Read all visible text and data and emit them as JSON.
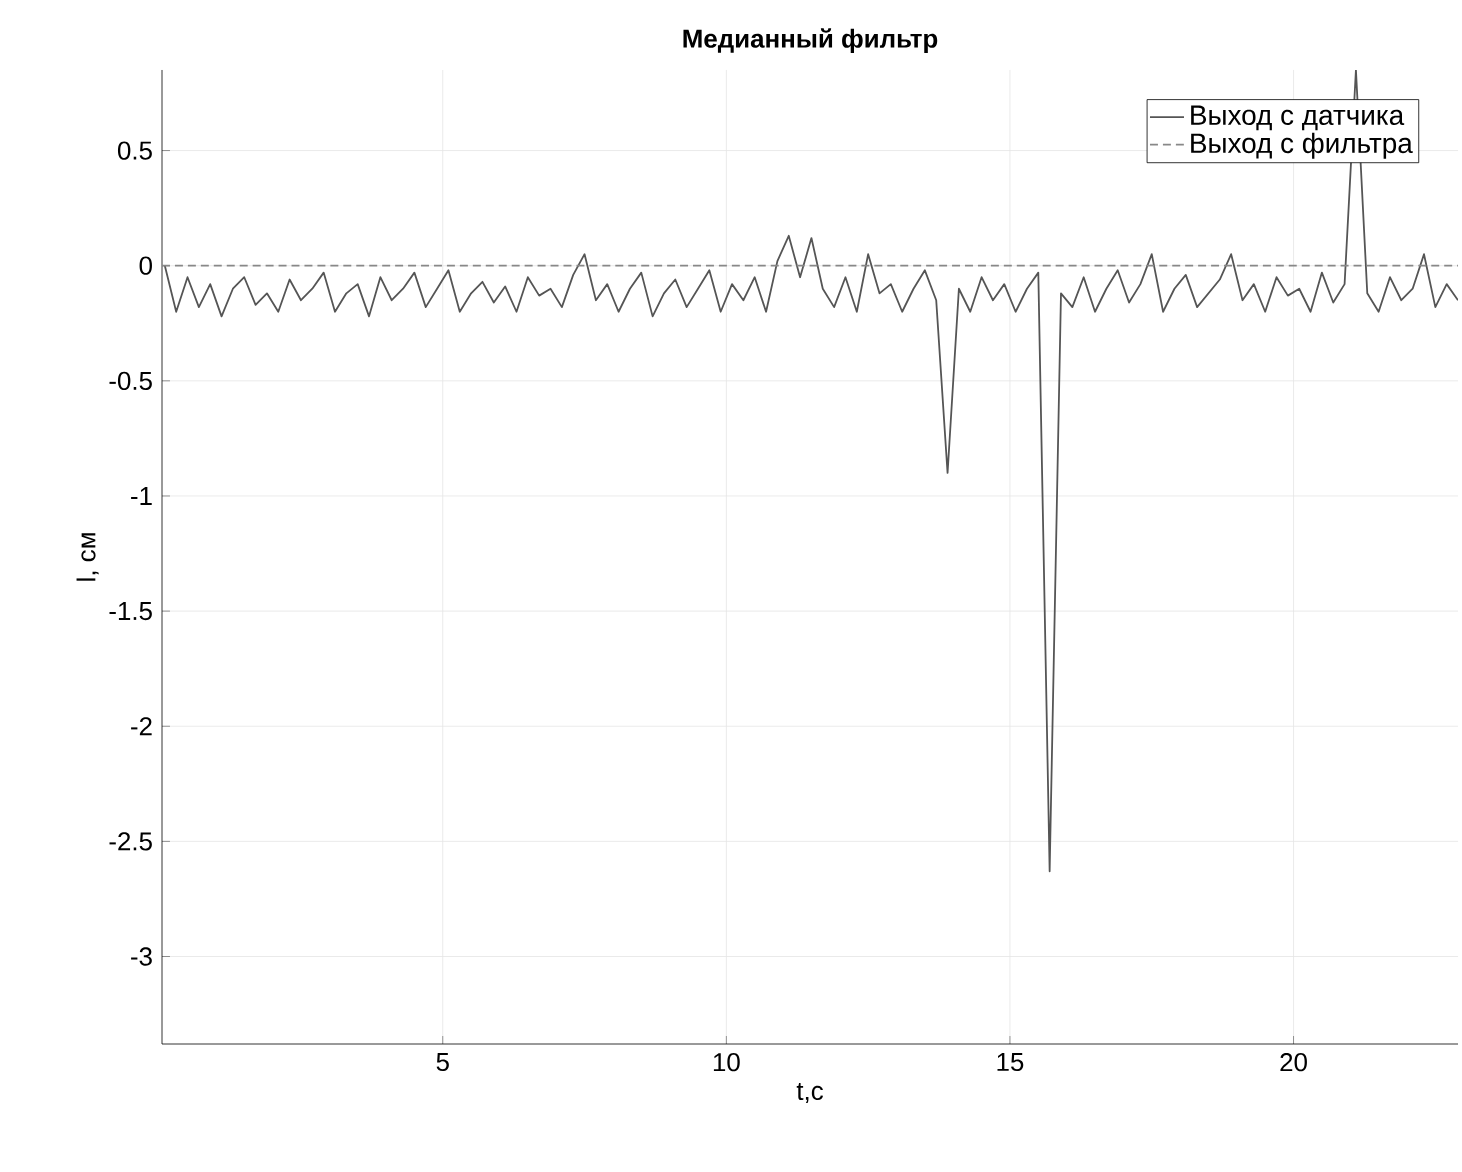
{
  "chart_data": {
    "type": "line",
    "title": "Медианный фильтр",
    "xlabel": "t,c",
    "ylabel": "l, см",
    "xlim": [
      0.05,
      22.9
    ],
    "ylim": [
      -3.38,
      0.85
    ],
    "xticks": [
      5,
      10,
      15,
      20
    ],
    "yticks": [
      -3,
      -2.5,
      -2,
      -1.5,
      -1,
      -0.5,
      0,
      0.5
    ],
    "grid": true,
    "legend": "top right",
    "series": [
      {
        "name": "Выход с датчика",
        "color": "#555555",
        "line_style": "solid",
        "x": [
          0.1,
          0.3,
          0.5,
          0.7,
          0.9,
          1.1,
          1.3,
          1.5,
          1.7,
          1.9,
          2.1,
          2.3,
          2.5,
          2.7,
          2.9,
          3.1,
          3.3,
          3.5,
          3.7,
          3.9,
          4.1,
          4.3,
          4.5,
          4.7,
          4.9,
          5.1,
          5.3,
          5.5,
          5.7,
          5.9,
          6.1,
          6.3,
          6.5,
          6.7,
          6.9,
          7.1,
          7.3,
          7.5,
          7.7,
          7.9,
          8.1,
          8.3,
          8.5,
          8.7,
          8.9,
          9.1,
          9.3,
          9.5,
          9.7,
          9.9,
          10.1,
          10.3,
          10.5,
          10.7,
          10.9,
          11.1,
          11.3,
          11.5,
          11.7,
          11.9,
          12.1,
          12.3,
          12.5,
          12.7,
          12.9,
          13.1,
          13.3,
          13.5,
          13.7,
          13.9,
          14.1,
          14.3,
          14.5,
          14.7,
          14.9,
          15.1,
          15.3,
          15.5,
          15.7,
          15.9,
          16.1,
          16.3,
          16.5,
          16.7,
          16.9,
          17.1,
          17.3,
          17.5,
          17.7,
          17.9,
          18.1,
          18.3,
          18.5,
          18.7,
          18.9,
          19.1,
          19.3,
          19.5,
          19.7,
          19.9,
          20.1,
          20.3,
          20.5,
          20.7,
          20.9,
          21.1,
          21.3,
          21.5,
          21.7,
          21.9,
          22.1,
          22.3,
          22.5,
          22.7,
          22.9
        ],
        "values": [
          0,
          -0.2,
          -0.05,
          -0.18,
          -0.08,
          -0.22,
          -0.1,
          -0.05,
          -0.17,
          -0.12,
          -0.2,
          -0.06,
          -0.15,
          -0.1,
          -0.03,
          -0.2,
          -0.12,
          -0.08,
          -0.22,
          -0.05,
          -0.15,
          -0.1,
          -0.03,
          -0.18,
          -0.1,
          -0.02,
          -0.2,
          -0.12,
          -0.07,
          -0.16,
          -0.09,
          -0.2,
          -0.05,
          -0.13,
          -0.1,
          -0.18,
          -0.04,
          0.05,
          -0.15,
          -0.08,
          -0.2,
          -0.1,
          -0.03,
          -0.22,
          -0.12,
          -0.06,
          -0.18,
          -0.1,
          -0.02,
          -0.2,
          -0.08,
          -0.15,
          -0.05,
          -0.2,
          0.02,
          0.13,
          -0.05,
          0.12,
          -0.1,
          -0.18,
          -0.05,
          -0.2,
          0.05,
          -0.12,
          -0.08,
          -0.2,
          -0.1,
          -0.02,
          -0.15,
          -0.9,
          -0.1,
          -0.2,
          -0.05,
          -0.15,
          -0.08,
          -0.2,
          -0.1,
          -0.03,
          -2.63,
          -0.12,
          -0.18,
          -0.05,
          -0.2,
          -0.1,
          -0.02,
          -0.16,
          -0.08,
          0.05,
          -0.2,
          -0.1,
          -0.04,
          -0.18,
          -0.12,
          -0.06,
          0.05,
          -0.15,
          -0.08,
          -0.2,
          -0.05,
          -0.13,
          -0.1,
          -0.2,
          -0.03,
          -0.16,
          -0.08,
          0.85,
          -0.12,
          -0.2,
          -0.05,
          -0.15,
          -0.1,
          0.05,
          -0.18,
          -0.08,
          -0.15
        ]
      },
      {
        "name": "Выход с фильтра",
        "color": "#888888",
        "line_style": "dashed",
        "x": [
          0.05,
          22.9
        ],
        "values": [
          0,
          0
        ]
      }
    ]
  }
}
